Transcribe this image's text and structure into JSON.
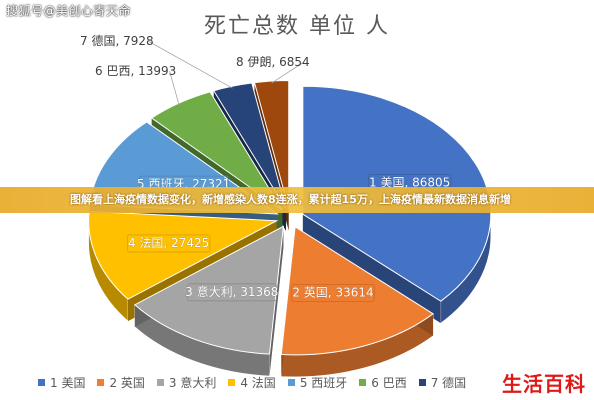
{
  "watermark": "搜狐号@美创心寄天命",
  "banner_text": "图解看上海疫情数据变化，新增感染人数8连涨，累计超15万，上海疫情最新数据消息新增",
  "brand": "生活百科",
  "chart_data": {
    "type": "pie",
    "style": "3d-exploded",
    "title": "死亡总数 单位 人",
    "legend_position": "bottom",
    "slices": [
      {
        "label": "1 美国",
        "value": 86805,
        "color": "#4472C4",
        "text": "1 美国, 86805"
      },
      {
        "label": "2 英国",
        "value": 33614,
        "color": "#ED7D31",
        "text": "2 英国, 33614"
      },
      {
        "label": "3 意大利",
        "value": 31368,
        "color": "#A5A5A5",
        "text": "3 意大利, 31368"
      },
      {
        "label": "4 法国",
        "value": 27425,
        "color": "#FFC000",
        "text": "4 法国, 27425"
      },
      {
        "label": "5 西班牙",
        "value": 27321,
        "color": "#5B9BD5",
        "text": "5 西班牙, 27321"
      },
      {
        "label": "6 巴西",
        "value": 13993,
        "color": "#70AD47",
        "text": "6 巴西, 13993"
      },
      {
        "label": "7 德国",
        "value": 7928,
        "color": "#264478",
        "text": "7 德国, 7928"
      },
      {
        "label": "8 伊朗",
        "value": 6854,
        "color": "#9E480E",
        "text": "8 伊朗, 6854"
      }
    ]
  }
}
